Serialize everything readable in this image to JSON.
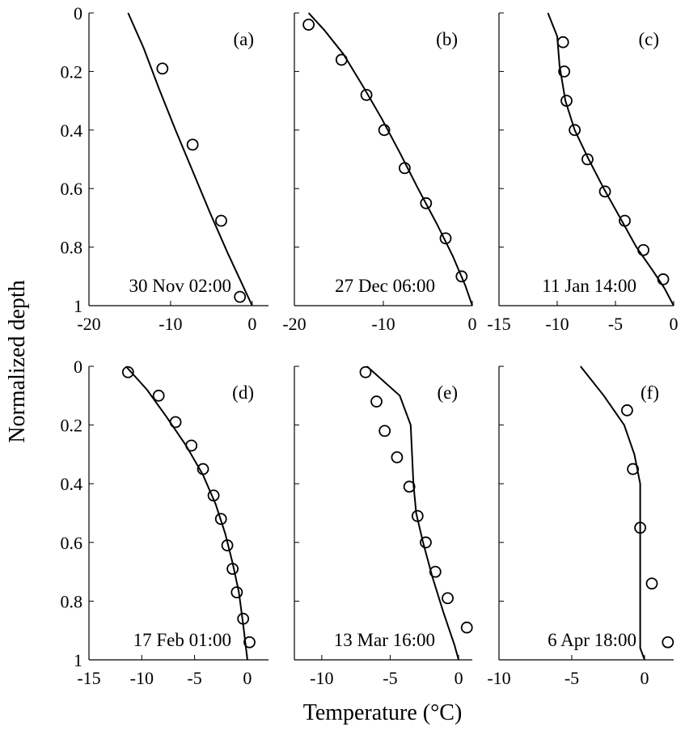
{
  "figure": {
    "ylabel": "Normalized depth",
    "xlabel": "Temperature (°C)"
  },
  "chart_data": [
    {
      "type": "line",
      "panel": "(a)",
      "annotation": "30 Nov 02:00",
      "xlim": [
        -20,
        2
      ],
      "ylim": [
        0,
        1
      ],
      "y_reversed": true,
      "xticks": [
        "-20",
        "-10",
        "0"
      ],
      "xtick_values": [
        -20,
        -10,
        0
      ],
      "yticks": [
        "0",
        "0.2",
        "0.4",
        "0.6",
        "0.8",
        "1"
      ],
      "ytick_values": [
        0,
        0.2,
        0.4,
        0.6,
        0.8,
        1
      ],
      "show_yticklabels": true,
      "show_xlabel": false,
      "series": [
        {
          "kind": "line",
          "x": [
            -15.2,
            -13.3,
            -11.4,
            -9.4,
            -7.3,
            -5.2,
            -3.0,
            -1.0,
            0.0
          ],
          "y": [
            0,
            0.12,
            0.26,
            0.4,
            0.54,
            0.68,
            0.82,
            0.94,
            1.0
          ]
        },
        {
          "kind": "markers",
          "x": [
            -11.0,
            -7.3,
            -3.8,
            -1.5
          ],
          "y": [
            0.19,
            0.45,
            0.71,
            0.97
          ]
        }
      ]
    },
    {
      "type": "line",
      "panel": "(b)",
      "annotation": "27 Dec 06:00",
      "xlim": [
        -20,
        0
      ],
      "ylim": [
        0,
        1
      ],
      "y_reversed": true,
      "xticks": [
        "-20",
        "-10",
        "0"
      ],
      "xtick_values": [
        -20,
        -10,
        0
      ],
      "yticks": [
        "0",
        "0.2",
        "0.4",
        "0.6",
        "0.8",
        "1"
      ],
      "ytick_values": [
        0,
        0.2,
        0.4,
        0.6,
        0.8,
        1
      ],
      "show_yticklabels": false,
      "show_xlabel": false,
      "series": [
        {
          "kind": "line",
          "x": [
            -18.4,
            -16.6,
            -14.5,
            -12.3,
            -10.2,
            -8.1,
            -6.1,
            -4.0,
            -2.2,
            -0.8,
            0.0
          ],
          "y": [
            0,
            0.06,
            0.14,
            0.25,
            0.36,
            0.48,
            0.6,
            0.72,
            0.83,
            0.93,
            1.0
          ]
        },
        {
          "kind": "markers",
          "x": [
            -18.4,
            -14.7,
            -11.9,
            -9.9,
            -7.6,
            -5.2,
            -3.0,
            -1.2
          ],
          "y": [
            0.04,
            0.16,
            0.28,
            0.4,
            0.53,
            0.65,
            0.77,
            0.9
          ]
        }
      ]
    },
    {
      "type": "line",
      "panel": "(c)",
      "annotation": "11 Jan 14:00",
      "xlim": [
        -15,
        0
      ],
      "ylim": [
        0,
        1
      ],
      "y_reversed": true,
      "xticks": [
        "-15",
        "-10",
        "-5",
        "0"
      ],
      "xtick_values": [
        -15,
        -10,
        -5,
        0
      ],
      "yticks": [
        "0",
        "0.2",
        "0.4",
        "0.6",
        "0.8",
        "1"
      ],
      "ytick_values": [
        0,
        0.2,
        0.4,
        0.6,
        0.8,
        1
      ],
      "show_yticklabels": false,
      "show_xlabel": false,
      "series": [
        {
          "kind": "line",
          "x": [
            -10.8,
            -10.0,
            -9.8,
            -9.3,
            -8.5,
            -7.3,
            -6.0,
            -4.6,
            -3.2,
            -1.8,
            -0.8,
            0.0
          ],
          "y": [
            0,
            0.08,
            0.18,
            0.3,
            0.4,
            0.5,
            0.6,
            0.7,
            0.8,
            0.88,
            0.94,
            1.0
          ]
        },
        {
          "kind": "markers",
          "x": [
            -9.5,
            -9.4,
            -9.2,
            -8.5,
            -7.4,
            -5.9,
            -4.2,
            -2.6,
            -0.9
          ],
          "y": [
            0.1,
            0.2,
            0.3,
            0.4,
            0.5,
            0.61,
            0.71,
            0.81,
            0.91
          ]
        }
      ]
    },
    {
      "type": "line",
      "panel": "(d)",
      "annotation": "17 Feb 01:00",
      "xlim": [
        -15,
        2
      ],
      "ylim": [
        0,
        1
      ],
      "y_reversed": true,
      "xticks": [
        "-15",
        "-10",
        "-5",
        "0"
      ],
      "xtick_values": [
        -15,
        -10,
        -5,
        0
      ],
      "yticks": [
        "0",
        "0.2",
        "0.4",
        "0.6",
        "0.8",
        "1"
      ],
      "ytick_values": [
        0,
        0.2,
        0.4,
        0.6,
        0.8,
        1
      ],
      "show_yticklabels": true,
      "show_xlabel": false,
      "series": [
        {
          "kind": "line",
          "x": [
            -11.5,
            -9.5,
            -7.7,
            -5.8,
            -4.2,
            -3.0,
            -2.1,
            -1.4,
            -0.8,
            -0.4,
            0.0
          ],
          "y": [
            0,
            0.08,
            0.17,
            0.27,
            0.37,
            0.47,
            0.57,
            0.67,
            0.77,
            0.88,
            1.0
          ]
        },
        {
          "kind": "markers",
          "x": [
            -11.3,
            -8.4,
            -6.8,
            -5.3,
            -4.2,
            -3.2,
            -2.5,
            -1.9,
            -1.4,
            -1.0,
            -0.4,
            0.2
          ],
          "y": [
            0.02,
            0.1,
            0.19,
            0.27,
            0.35,
            0.44,
            0.52,
            0.61,
            0.69,
            0.77,
            0.86,
            0.94
          ]
        }
      ]
    },
    {
      "type": "line",
      "panel": "(e)",
      "annotation": "13 Mar 16:00",
      "xlim": [
        -12,
        1
      ],
      "ylim": [
        0,
        1
      ],
      "y_reversed": true,
      "xticks": [
        "-10",
        "-5",
        "0"
      ],
      "xtick_values": [
        -10,
        -5,
        0
      ],
      "yticks": [
        "0",
        "0.2",
        "0.4",
        "0.6",
        "0.8",
        "1"
      ],
      "ytick_values": [
        0,
        0.2,
        0.4,
        0.6,
        0.8,
        1
      ],
      "show_yticklabels": false,
      "show_xlabel": true,
      "series": [
        {
          "kind": "line",
          "x": [
            -6.7,
            -4.3,
            -3.5,
            -3.3,
            -3.1,
            -2.6,
            -1.9,
            -1.1,
            -0.3,
            0.0
          ],
          "y": [
            0,
            0.1,
            0.2,
            0.4,
            0.5,
            0.6,
            0.72,
            0.84,
            0.95,
            1.0
          ]
        },
        {
          "kind": "markers",
          "x": [
            -6.8,
            -6.0,
            -5.4,
            -4.5,
            -3.6,
            -3.0,
            -2.4,
            -1.7,
            -0.8,
            0.6
          ],
          "y": [
            0.02,
            0.12,
            0.22,
            0.31,
            0.41,
            0.51,
            0.6,
            0.7,
            0.79,
            0.89
          ]
        }
      ]
    },
    {
      "type": "line",
      "panel": "(f)",
      "annotation": "6 Apr 18:00",
      "xlim": [
        -10,
        2
      ],
      "ylim": [
        0,
        1
      ],
      "y_reversed": true,
      "xticks": [
        "-10",
        "-5",
        "0"
      ],
      "xtick_values": [
        -10,
        -5,
        0
      ],
      "yticks": [
        "0",
        "0.2",
        "0.4",
        "0.6",
        "0.8",
        "1"
      ],
      "ytick_values": [
        0,
        0.2,
        0.4,
        0.6,
        0.8,
        1
      ],
      "show_yticklabels": false,
      "show_xlabel": false,
      "series": [
        {
          "kind": "line",
          "x": [
            -4.4,
            -2.8,
            -1.4,
            -0.7,
            -0.3,
            -0.3,
            -0.3,
            -0.3,
            0.0
          ],
          "y": [
            0,
            0.1,
            0.2,
            0.3,
            0.4,
            0.6,
            0.8,
            0.96,
            1.0
          ]
        },
        {
          "kind": "markers",
          "x": [
            -1.2,
            -0.8,
            -0.3,
            0.5,
            1.6
          ],
          "y": [
            0.15,
            0.35,
            0.55,
            0.74,
            0.94
          ]
        }
      ]
    }
  ]
}
